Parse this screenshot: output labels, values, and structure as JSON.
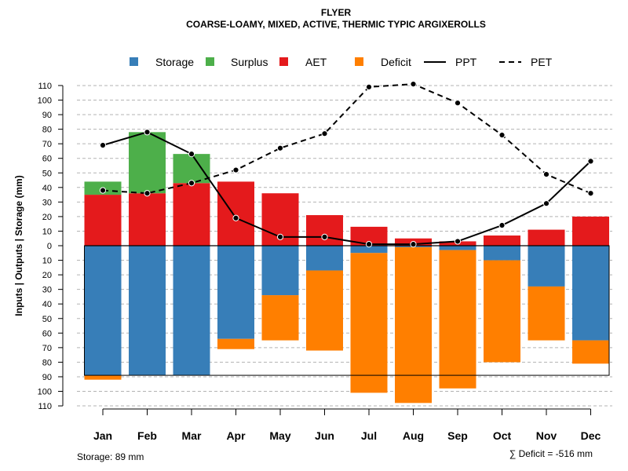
{
  "chart_data": {
    "type": "bar",
    "title": "FLYER",
    "subtitle": "COARSE-LOAMY, MIXED, ACTIVE, THERMIC TYPIC ARGIXEROLLS",
    "ylabel": "Inputs | Outputs | Storage    (mm)",
    "xlabel": "",
    "ylim": [
      -110,
      110
    ],
    "yticks": [
      110,
      100,
      90,
      80,
      70,
      60,
      50,
      40,
      30,
      20,
      10,
      0,
      10,
      20,
      30,
      40,
      50,
      60,
      70,
      80,
      90,
      100,
      110
    ],
    "categories": [
      "Jan",
      "Feb",
      "Mar",
      "Apr",
      "May",
      "Jun",
      "Jul",
      "Aug",
      "Sep",
      "Oct",
      "Nov",
      "Dec"
    ],
    "legend": [
      {
        "name": "Storage",
        "kind": "box",
        "color": "#377eb8"
      },
      {
        "name": "Surplus",
        "kind": "box",
        "color": "#4daf4a"
      },
      {
        "name": "AET",
        "kind": "box",
        "color": "#e41a1c"
      },
      {
        "name": "Deficit",
        "kind": "box",
        "color": "#ff7f00"
      },
      {
        "name": "PPT",
        "kind": "solid",
        "color": "#000000"
      },
      {
        "name": "PET",
        "kind": "dashed",
        "color": "#000000"
      }
    ],
    "series": [
      {
        "name": "AET",
        "color": "#e41a1c",
        "values": [
          35,
          36,
          43,
          44,
          36,
          21,
          13,
          5,
          3,
          7,
          11,
          20
        ]
      },
      {
        "name": "Surplus",
        "color": "#4daf4a",
        "values": [
          9,
          42,
          20,
          0,
          0,
          0,
          0,
          0,
          0,
          0,
          0,
          0
        ]
      },
      {
        "name": "Storage",
        "color": "#377eb8",
        "values": [
          89,
          89,
          89,
          64,
          34,
          17,
          5,
          1,
          3,
          10,
          28,
          65
        ]
      },
      {
        "name": "Deficit",
        "color": "#ff7f00",
        "values": [
          3,
          0,
          0,
          7,
          31,
          55,
          96,
          107,
          95,
          70,
          37,
          16
        ]
      },
      {
        "name": "PPT",
        "color": "#000000",
        "values": [
          69,
          78,
          63,
          19,
          6,
          6,
          1,
          1,
          3,
          14,
          29,
          58
        ]
      },
      {
        "name": "PET",
        "color": "#000000",
        "values": [
          38,
          36,
          43,
          52,
          67,
          77,
          109,
          111,
          98,
          76,
          49,
          36
        ]
      }
    ],
    "storage_capacity": 89,
    "legend_position": "top-center",
    "grid": true,
    "notes": {
      "storage": "Storage: 89 mm",
      "deficit": "∑ Deficit = -516 mm"
    }
  }
}
